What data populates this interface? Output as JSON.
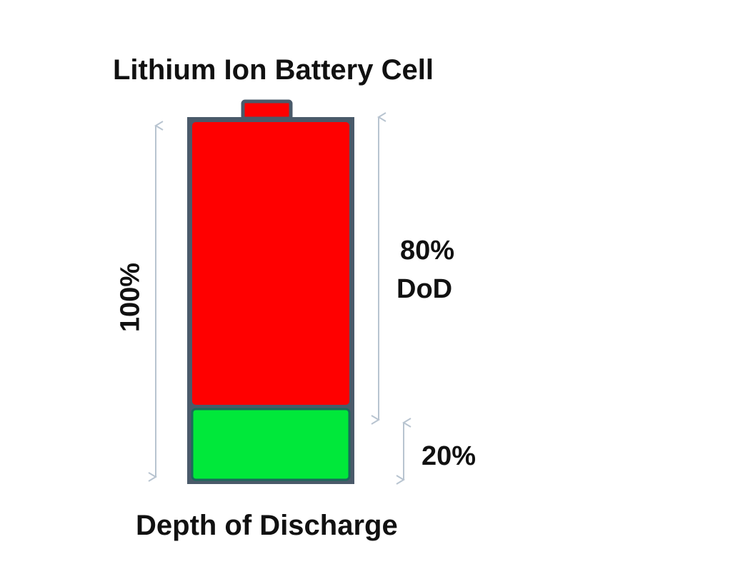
{
  "title": "Lithium Ion Battery Cell",
  "caption": "Depth of Discharge",
  "labels": {
    "total": "100%",
    "dod_value": "80%",
    "dod_label": "DoD",
    "reserve": "20%"
  },
  "levels": {
    "total_percent": 100,
    "dod_percent": 80,
    "reserve_percent": 20
  },
  "colors": {
    "discharged": "#ff0000",
    "reserve": "#00e83a",
    "casing": "#4a5a6a",
    "arrows": "#b8c4d0"
  }
}
